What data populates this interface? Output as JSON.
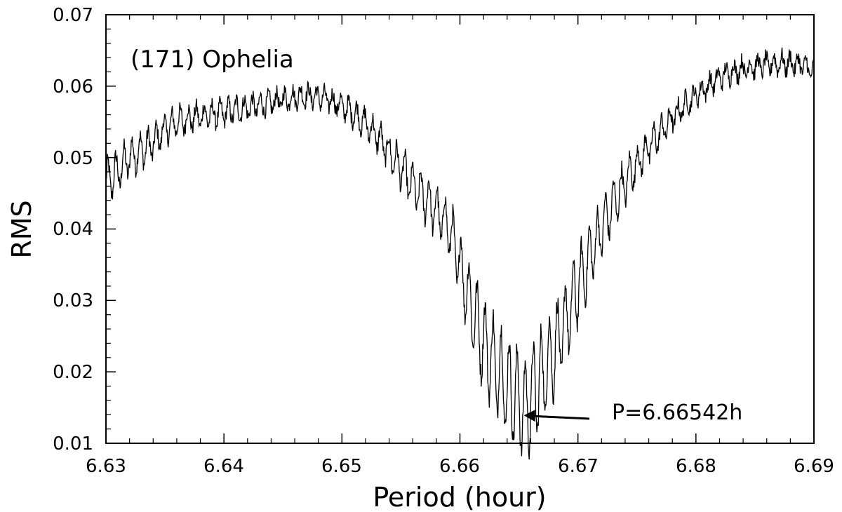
{
  "chart_data": {
    "type": "line",
    "title": "(171) Ophelia",
    "xlabel": "Period (hour)",
    "ylabel": "RMS",
    "xlim": [
      6.63,
      6.69
    ],
    "ylim": [
      0.01,
      0.07
    ],
    "xticks": [
      "6.63",
      "6.64",
      "6.65",
      "6.66",
      "6.67",
      "6.68",
      "6.69"
    ],
    "yticks": [
      "0.01",
      "0.02",
      "0.03",
      "0.04",
      "0.05",
      "0.06",
      "0.07"
    ],
    "grid": false,
    "line_color": "#000000",
    "series": [
      {
        "x": [
          6.63,
          6.631,
          6.632,
          6.633,
          6.634,
          6.635,
          6.636,
          6.637,
          6.638,
          6.639,
          6.64,
          6.641,
          6.642,
          6.643,
          6.644,
          6.645,
          6.646,
          6.647,
          6.648,
          6.649,
          6.65,
          6.651,
          6.652,
          6.653,
          6.654,
          6.655,
          6.656,
          6.657,
          6.658,
          6.659,
          6.66,
          6.661,
          6.662,
          6.663,
          6.664,
          6.665,
          6.6655,
          6.666,
          6.667,
          6.668,
          6.669,
          6.67,
          6.671,
          6.672,
          6.673,
          6.674,
          6.675,
          6.676,
          6.677,
          6.678,
          6.679,
          6.68,
          6.681,
          6.682,
          6.683,
          6.684,
          6.685,
          6.686,
          6.687,
          6.688,
          6.689,
          6.69
        ],
        "y": [
          0.0465,
          0.048,
          0.05,
          0.051,
          0.052,
          0.054,
          0.055,
          0.0555,
          0.0558,
          0.056,
          0.0563,
          0.0567,
          0.057,
          0.0573,
          0.0577,
          0.0581,
          0.0585,
          0.0587,
          0.0585,
          0.058,
          0.0572,
          0.0562,
          0.0548,
          0.053,
          0.0508,
          0.0485,
          0.046,
          0.0445,
          0.0425,
          0.0405,
          0.035,
          0.029,
          0.024,
          0.021,
          0.018,
          0.016,
          0.0145,
          0.0165,
          0.0195,
          0.023,
          0.027,
          0.032,
          0.036,
          0.04,
          0.0435,
          0.0465,
          0.0492,
          0.0515,
          0.0535,
          0.0555,
          0.0572,
          0.0588,
          0.06,
          0.0612,
          0.062,
          0.0625,
          0.0628,
          0.063,
          0.0632,
          0.0632,
          0.063,
          0.062
        ]
      }
    ],
    "annotations": [
      {
        "text": "P=6.66542h",
        "arrow_to_x": 6.66542,
        "arrow_to_y": 0.0139,
        "text_x": 6.673,
        "text_y": 0.0145
      }
    ]
  }
}
